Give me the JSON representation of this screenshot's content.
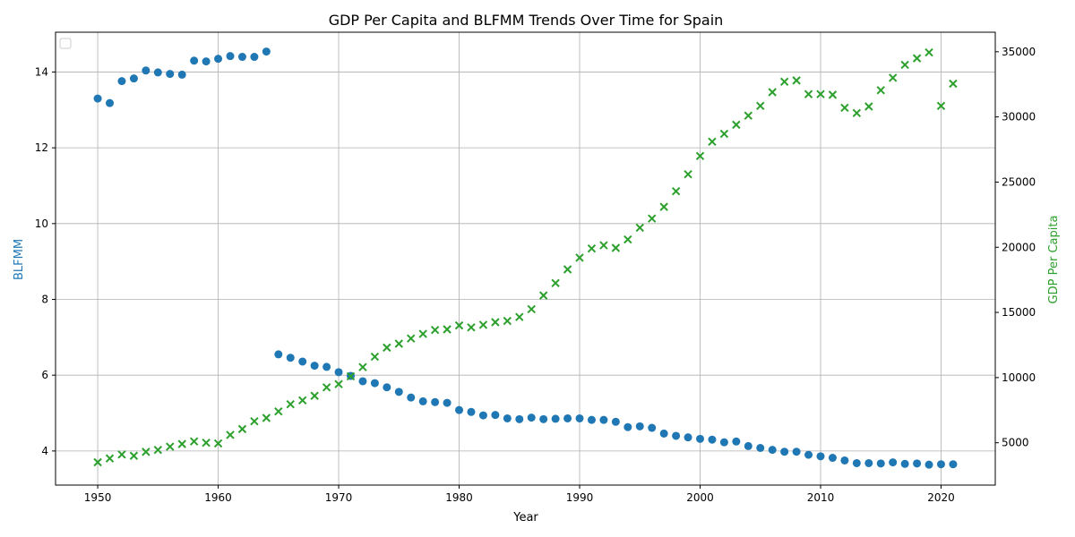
{
  "chart_data": {
    "type": "scatter",
    "title": "GDP Per Capita and BLFMM Trends Over Time for Spain",
    "xlabel": "Year",
    "ylabel_left": "BLFMM",
    "ylabel_right": "GDP Per Capita",
    "xlim": [
      1946.5,
      2024.5
    ],
    "ylim_left": [
      3.1,
      15.05
    ],
    "ylim_right": [
      1750,
      36500
    ],
    "x_ticks": [
      1950,
      1960,
      1970,
      1980,
      1990,
      2000,
      2010,
      2020
    ],
    "y_ticks_left": [
      4,
      6,
      8,
      10,
      12,
      14
    ],
    "y_ticks_right": [
      5000,
      10000,
      15000,
      20000,
      25000,
      30000,
      35000
    ],
    "grid": true,
    "legend_placement": "top-left",
    "colors": {
      "blfmm": "#1f77b4",
      "gdp": "#2ca02c"
    },
    "series": [
      {
        "key": "blfmm",
        "axis": "left",
        "marker": "circle",
        "x": [
          1950,
          1951,
          1952,
          1953,
          1954,
          1955,
          1956,
          1957,
          1958,
          1959,
          1960,
          1961,
          1962,
          1963,
          1964,
          1965,
          1966,
          1967,
          1968,
          1969,
          1970,
          1971,
          1972,
          1973,
          1974,
          1975,
          1976,
          1977,
          1978,
          1979,
          1980,
          1981,
          1982,
          1983,
          1984,
          1985,
          1986,
          1987,
          1988,
          1989,
          1990,
          1991,
          1992,
          1993,
          1994,
          1995,
          1996,
          1997,
          1998,
          1999,
          2000,
          2001,
          2002,
          2003,
          2004,
          2005,
          2006,
          2007,
          2008,
          2009,
          2010,
          2011,
          2012,
          2013,
          2014,
          2015,
          2016,
          2017,
          2018,
          2019,
          2020,
          2021
        ],
        "y": [
          13.3,
          13.18,
          13.76,
          13.83,
          14.04,
          13.99,
          13.95,
          13.93,
          14.3,
          14.28,
          14.35,
          14.42,
          14.4,
          14.4,
          14.54,
          6.55,
          6.46,
          6.36,
          6.25,
          6.22,
          6.08,
          5.98,
          5.84,
          5.79,
          5.68,
          5.56,
          5.41,
          5.31,
          5.29,
          5.27,
          5.08,
          5.03,
          4.94,
          4.95,
          4.86,
          4.84,
          4.88,
          4.84,
          4.85,
          4.86,
          4.86,
          4.82,
          4.82,
          4.77,
          4.63,
          4.65,
          4.61,
          4.46,
          4.4,
          4.36,
          4.32,
          4.3,
          4.23,
          4.25,
          4.13,
          4.08,
          4.03,
          3.98,
          3.98,
          3.9,
          3.86,
          3.82,
          3.75,
          3.68,
          3.68,
          3.67,
          3.7,
          3.66,
          3.67,
          3.64,
          3.65,
          3.65
        ]
      },
      {
        "key": "gdp",
        "axis": "right",
        "marker": "x",
        "x": [
          1950,
          1951,
          1952,
          1953,
          1954,
          1955,
          1956,
          1957,
          1958,
          1959,
          1960,
          1961,
          1962,
          1963,
          1964,
          1965,
          1966,
          1967,
          1968,
          1969,
          1970,
          1971,
          1972,
          1973,
          1974,
          1975,
          1976,
          1977,
          1978,
          1979,
          1980,
          1981,
          1982,
          1983,
          1984,
          1985,
          1986,
          1987,
          1988,
          1989,
          1990,
          1991,
          1992,
          1993,
          1994,
          1995,
          1996,
          1997,
          1998,
          1999,
          2000,
          2001,
          2002,
          2003,
          2004,
          2005,
          2006,
          2007,
          2008,
          2009,
          2010,
          2011,
          2012,
          2013,
          2014,
          2015,
          2016,
          2017,
          2018,
          2019,
          2020,
          2021
        ],
        "y": [
          3500,
          3800,
          4100,
          4000,
          4300,
          4450,
          4700,
          4900,
          5100,
          5000,
          4950,
          5600,
          6050,
          6650,
          6900,
          7400,
          7950,
          8250,
          8600,
          9250,
          9500,
          10100,
          10800,
          11600,
          12300,
          12600,
          13000,
          13350,
          13650,
          13700,
          14000,
          13850,
          14050,
          14250,
          14350,
          14650,
          15250,
          16300,
          17250,
          18300,
          19200,
          19900,
          20150,
          19950,
          20600,
          21500,
          22200,
          23100,
          24300,
          25600,
          27000,
          28100,
          28700,
          29400,
          30100,
          30850,
          31900,
          32700,
          32800,
          31750,
          31750,
          31700,
          30700,
          30300,
          30800,
          32050,
          33000,
          34000,
          34500,
          34950,
          30850,
          32550
        ]
      }
    ]
  }
}
